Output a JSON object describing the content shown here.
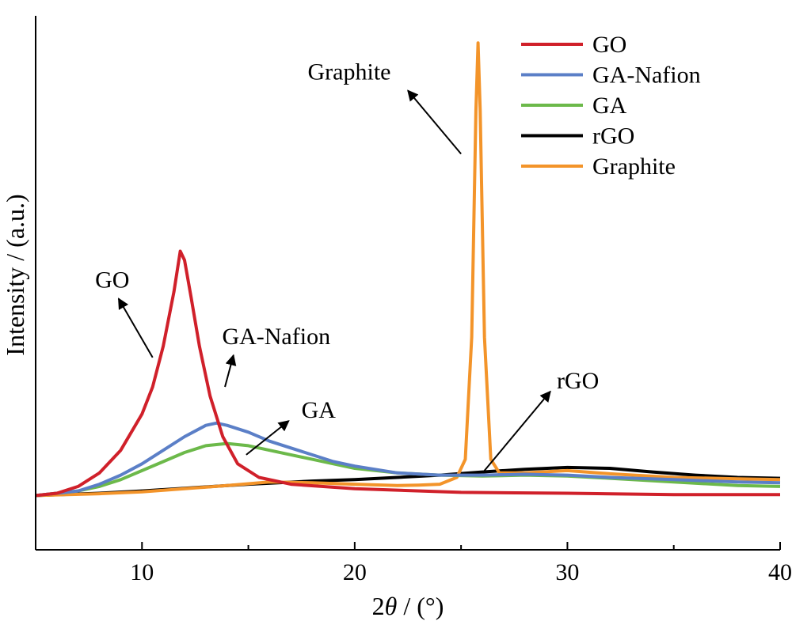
{
  "chart_data": {
    "type": "line",
    "xlabel_prefix": "2",
    "xlabel_symbol": "θ",
    "xlabel_suffix": " / (°)",
    "ylabel": "Intensity / (a.u.)",
    "xlim": [
      5,
      40
    ],
    "ylim": [
      -0.12,
      1.06
    ],
    "xticks": [
      10,
      20,
      30,
      40
    ],
    "minor_xticks": [
      15,
      25,
      35
    ],
    "y_tick_labels_shown": false,
    "grid": false,
    "legend_position": "top-right",
    "series": [
      {
        "name": "GO",
        "color": "#d0202a",
        "points": [
          [
            5,
            0
          ],
          [
            6,
            0.005
          ],
          [
            7,
            0.02
          ],
          [
            8,
            0.05
          ],
          [
            9,
            0.1
          ],
          [
            10,
            0.18
          ],
          [
            10.5,
            0.24
          ],
          [
            11,
            0.33
          ],
          [
            11.5,
            0.45
          ],
          [
            11.8,
            0.54
          ],
          [
            12,
            0.52
          ],
          [
            12.3,
            0.44
          ],
          [
            12.7,
            0.33
          ],
          [
            13.2,
            0.22
          ],
          [
            13.8,
            0.13
          ],
          [
            14.5,
            0.07
          ],
          [
            15.5,
            0.04
          ],
          [
            17,
            0.025
          ],
          [
            20,
            0.015
          ],
          [
            25,
            0.007
          ],
          [
            30,
            0.005
          ],
          [
            35,
            0.002
          ],
          [
            40,
            0.002
          ]
        ]
      },
      {
        "name": "GA-Nafion",
        "color": "#5b7fc7",
        "points": [
          [
            5,
            0
          ],
          [
            7,
            0.01
          ],
          [
            8,
            0.025
          ],
          [
            9,
            0.045
          ],
          [
            10,
            0.07
          ],
          [
            11,
            0.1
          ],
          [
            12,
            0.13
          ],
          [
            13,
            0.155
          ],
          [
            13.5,
            0.16
          ],
          [
            14,
            0.155
          ],
          [
            15,
            0.14
          ],
          [
            16,
            0.12
          ],
          [
            17,
            0.105
          ],
          [
            18,
            0.09
          ],
          [
            19,
            0.075
          ],
          [
            20,
            0.065
          ],
          [
            22,
            0.05
          ],
          [
            24,
            0.045
          ],
          [
            26,
            0.045
          ],
          [
            28,
            0.047
          ],
          [
            30,
            0.045
          ],
          [
            32,
            0.04
          ],
          [
            35,
            0.035
          ],
          [
            38,
            0.03
          ],
          [
            40,
            0.028
          ]
        ]
      },
      {
        "name": "GA",
        "color": "#6cb94a",
        "points": [
          [
            5,
            0
          ],
          [
            7,
            0.01
          ],
          [
            8,
            0.02
          ],
          [
            9,
            0.035
          ],
          [
            10,
            0.055
          ],
          [
            11,
            0.075
          ],
          [
            12,
            0.095
          ],
          [
            13,
            0.11
          ],
          [
            14,
            0.115
          ],
          [
            15,
            0.11
          ],
          [
            16,
            0.1
          ],
          [
            17,
            0.09
          ],
          [
            18,
            0.08
          ],
          [
            19,
            0.07
          ],
          [
            20,
            0.06
          ],
          [
            22,
            0.05
          ],
          [
            24,
            0.045
          ],
          [
            26,
            0.043
          ],
          [
            28,
            0.045
          ],
          [
            30,
            0.043
          ],
          [
            32,
            0.038
          ],
          [
            35,
            0.03
          ],
          [
            38,
            0.022
          ],
          [
            40,
            0.02
          ]
        ]
      },
      {
        "name": "rGO",
        "color": "#000000",
        "points": [
          [
            5,
            0
          ],
          [
            8,
            0.005
          ],
          [
            10,
            0.01
          ],
          [
            12,
            0.016
          ],
          [
            15,
            0.025
          ],
          [
            18,
            0.032
          ],
          [
            20,
            0.035
          ],
          [
            22,
            0.04
          ],
          [
            24,
            0.045
          ],
          [
            26,
            0.052
          ],
          [
            28,
            0.058
          ],
          [
            30,
            0.062
          ],
          [
            32,
            0.06
          ],
          [
            34,
            0.052
          ],
          [
            36,
            0.045
          ],
          [
            38,
            0.04
          ],
          [
            40,
            0.038
          ]
        ]
      },
      {
        "name": "Graphite",
        "color": "#f3942a",
        "points": [
          [
            5,
            0
          ],
          [
            8,
            0.004
          ],
          [
            10,
            0.008
          ],
          [
            12,
            0.015
          ],
          [
            14,
            0.022
          ],
          [
            16,
            0.03
          ],
          [
            18,
            0.028
          ],
          [
            20,
            0.025
          ],
          [
            22,
            0.022
          ],
          [
            23,
            0.023
          ],
          [
            24,
            0.025
          ],
          [
            24.8,
            0.04
          ],
          [
            25.2,
            0.08
          ],
          [
            25.5,
            0.35
          ],
          [
            25.7,
            0.85
          ],
          [
            25.8,
            1.0
          ],
          [
            25.9,
            0.85
          ],
          [
            26.1,
            0.35
          ],
          [
            26.4,
            0.08
          ],
          [
            26.8,
            0.05
          ],
          [
            28,
            0.05
          ],
          [
            30,
            0.055
          ],
          [
            32,
            0.048
          ],
          [
            35,
            0.04
          ],
          [
            38,
            0.037
          ],
          [
            40,
            0.035
          ]
        ]
      }
    ],
    "annotations": [
      {
        "text": "Graphite",
        "arrow_from": [
          25.0,
          0.755
        ],
        "arrow_to": [
          22.5,
          0.895
        ]
      },
      {
        "text": "GO",
        "arrow_from": [
          10.5,
          0.305
        ],
        "arrow_to": [
          8.9,
          0.435
        ]
      },
      {
        "text": "GA-Nafion",
        "arrow_from": [
          13.9,
          0.24
        ],
        "arrow_to": [
          14.3,
          0.31
        ]
      },
      {
        "text": "GA",
        "arrow_from": [
          14.9,
          0.09
        ],
        "arrow_to": [
          16.9,
          0.165
        ]
      },
      {
        "text": "rGO",
        "arrow_from": [
          26.1,
          0.055
        ],
        "arrow_to": [
          29.2,
          0.23
        ]
      }
    ]
  }
}
